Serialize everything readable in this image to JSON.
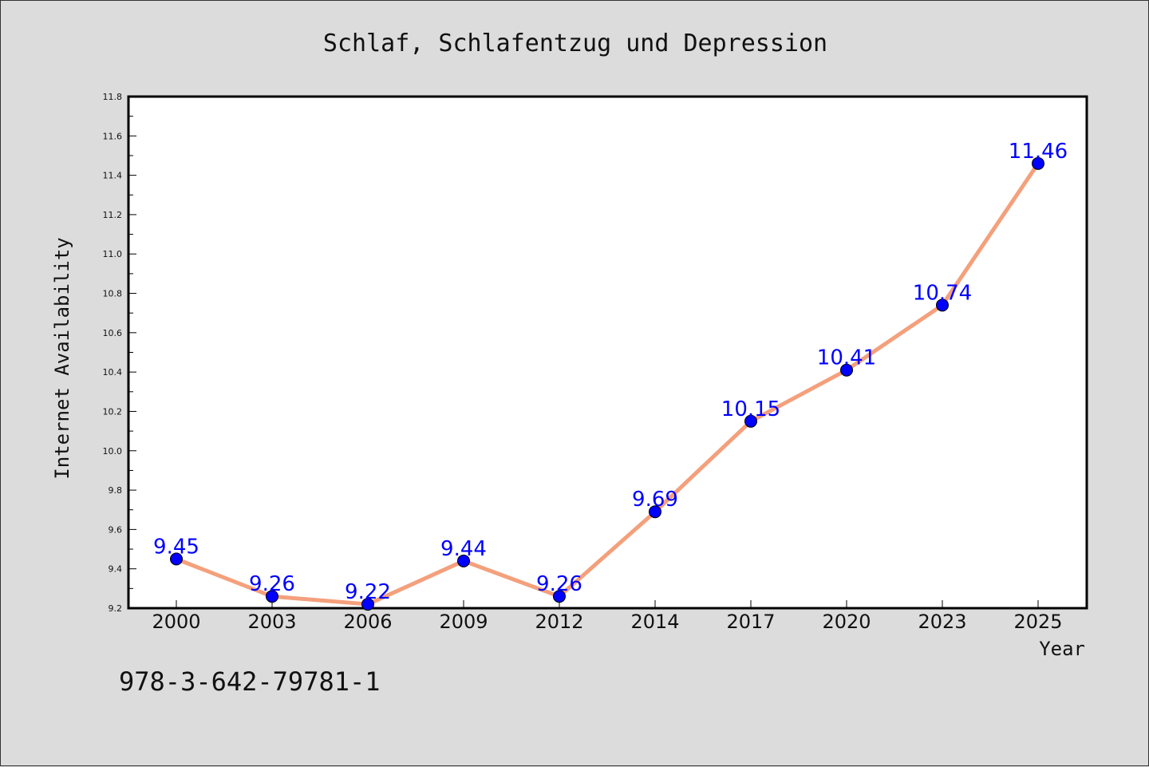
{
  "chart_data": {
    "type": "line",
    "title": "Schlaf, Schlafentzug und Depression",
    "xlabel": "Year",
    "ylabel": "Internet Availability",
    "categories": [
      "2000",
      "2003",
      "2006",
      "2009",
      "2012",
      "2014",
      "2017",
      "2020",
      "2023",
      "2025"
    ],
    "series": [
      {
        "values": [
          9.45,
          9.26,
          9.22,
          9.44,
          9.26,
          9.69,
          10.15,
          10.41,
          10.74,
          11.46
        ]
      }
    ],
    "data_labels": [
      "9.45",
      "9.26",
      "9.22",
      "9.44",
      "9.26",
      "9.69",
      "10.15",
      "10.41",
      "10.74",
      "11.46"
    ],
    "ylim": [
      9.2,
      11.8
    ],
    "yticks": [
      "9.2",
      "9.4",
      "9.6",
      "9.8",
      "10.0",
      "10.2",
      "10.4",
      "10.6",
      "10.8",
      "11.0",
      "11.2",
      "11.4",
      "11.6",
      "11.8"
    ],
    "grid": false,
    "legend": "none",
    "colors": {
      "line": "#f4a07c",
      "marker": "#0000ff",
      "label": "#0000ff",
      "background": "#dcdcdc",
      "plot_background": "#ffffff"
    }
  },
  "footer": {
    "isbn": "978-3-642-79781-1"
  }
}
